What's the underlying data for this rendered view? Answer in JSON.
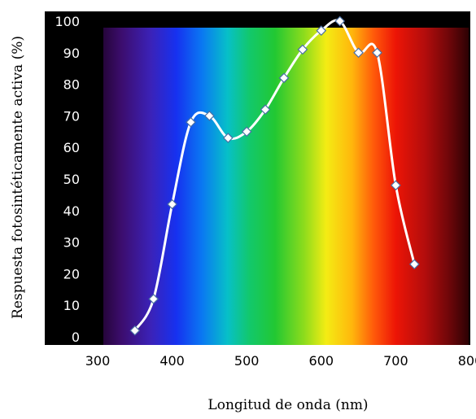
{
  "chart_data": {
    "type": "line",
    "title": "",
    "xlabel": "Longitud de onda (nm)",
    "ylabel": "Respuesta fotosintéticamente activa (%)",
    "xlim": [
      300,
      800
    ],
    "ylim": [
      0,
      100
    ],
    "xticks": [
      300,
      400,
      500,
      600,
      700,
      800
    ],
    "yticks": [
      0,
      10,
      20,
      30,
      40,
      50,
      60,
      70,
      80,
      90,
      100
    ],
    "background": "visible spectrum gradient from violet to dark red",
    "grid": false,
    "series": [
      {
        "color": "#ffffff",
        "marker": "diamond",
        "x": [
          350,
          375,
          400,
          425,
          450,
          475,
          500,
          525,
          550,
          575,
          600,
          625,
          650,
          675,
          700,
          725
        ],
        "y": [
          2,
          12,
          42,
          68,
          70,
          63,
          65,
          72,
          82,
          91,
          97,
          100,
          90,
          90,
          48,
          23
        ]
      }
    ]
  }
}
